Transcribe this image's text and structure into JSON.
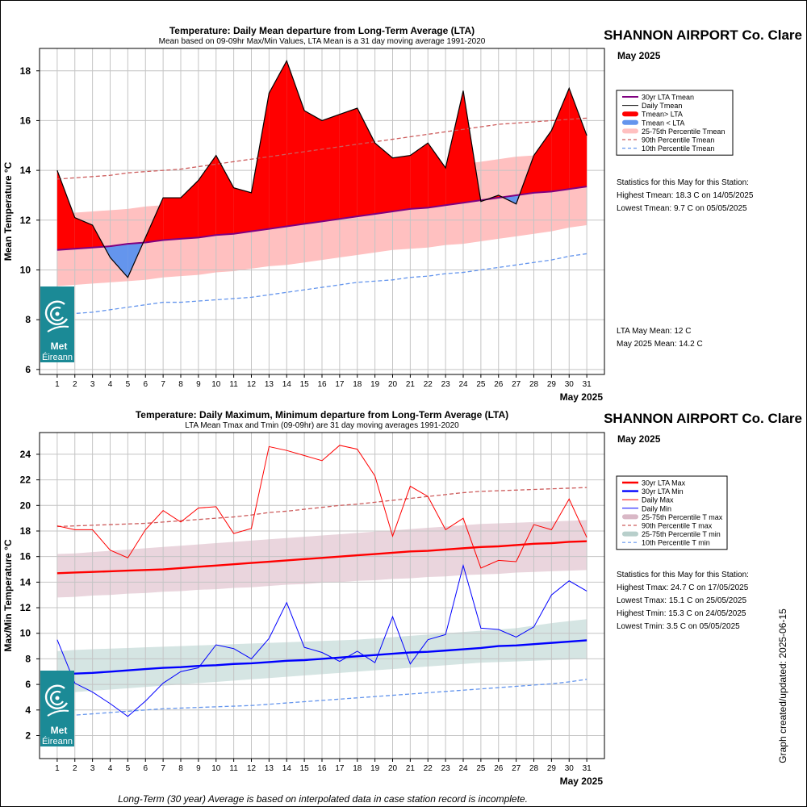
{
  "station": "SHANNON AIRPORT Co. Clare",
  "period": "May 2025",
  "footer_note": "Long-Term (30 year) Average is based on interpolated data in case station record is incomplete.",
  "created": "Graph created/updated:  2025-06-15",
  "logo": {
    "line1": "Met",
    "line2": "Éireann",
    "icon": "met-eireann-swirl-icon"
  },
  "colors": {
    "above_lta": "#ff0000",
    "below_lta": "#6495ed",
    "lta_mean": "#800080",
    "band_mean": "#ffc0c0",
    "max_line": "#ff0000",
    "min_line": "#0000ff",
    "band_max": "#ead5dd",
    "band_min": "#d5e5e3",
    "p10": "#6495ed",
    "p90": "#cd5c5c",
    "logo_bg": "#1b8a96"
  },
  "chart_data": [
    {
      "type": "area",
      "title": "Temperature: Daily Mean departure from Long-Term Average (LTA)",
      "subtitle": "Mean based on 09-09hr Max/Min Values, LTA Mean is a 31 day moving average 1991-2020",
      "xlabel": "May 2025",
      "ylabel": "Mean Temperature °C",
      "xlim": [
        0,
        32
      ],
      "ylim": [
        5.8,
        18.9
      ],
      "yticks": [
        6,
        8,
        10,
        12,
        14,
        16,
        18
      ],
      "grid": true,
      "legend_position": "right",
      "x": [
        1,
        2,
        3,
        4,
        5,
        6,
        7,
        8,
        9,
        10,
        11,
        12,
        13,
        14,
        15,
        16,
        17,
        18,
        19,
        20,
        21,
        22,
        23,
        24,
        25,
        26,
        27,
        28,
        29,
        30,
        31
      ],
      "legend": [
        "30yr LTA Tmean",
        "Daily Tmean",
        "Tmean> LTA",
        "Tmean < LTA",
        "25-75th Percentile Tmean",
        "90th Percentile Tmean",
        "10th Percentile Tmean"
      ],
      "series": [
        {
          "name": "Daily Tmean",
          "values": [
            14.0,
            12.1,
            11.8,
            10.5,
            9.7,
            11.3,
            12.9,
            12.9,
            13.6,
            14.6,
            13.3,
            13.1,
            17.1,
            18.4,
            16.4,
            16.0,
            16.25,
            16.5,
            15.1,
            14.5,
            14.6,
            15.1,
            14.1,
            17.2,
            12.75,
            13.0,
            12.65,
            14.6,
            15.6,
            17.3,
            15.4
          ]
        },
        {
          "name": "30yr LTA Tmean",
          "values": [
            10.8,
            10.85,
            10.9,
            10.95,
            11.05,
            11.1,
            11.2,
            11.25,
            11.3,
            11.4,
            11.45,
            11.55,
            11.65,
            11.75,
            11.85,
            11.95,
            12.05,
            12.15,
            12.25,
            12.35,
            12.45,
            12.5,
            12.6,
            12.7,
            12.8,
            12.9,
            13.0,
            13.1,
            13.15,
            13.25,
            13.35
          ]
        },
        {
          "name": "25th Percentile Tmean",
          "values": [
            9.35,
            9.4,
            9.45,
            9.5,
            9.55,
            9.6,
            9.7,
            9.75,
            9.8,
            9.9,
            9.95,
            10.05,
            10.15,
            10.2,
            10.3,
            10.4,
            10.5,
            10.6,
            10.7,
            10.8,
            10.85,
            10.9,
            11.0,
            11.05,
            11.15,
            11.25,
            11.35,
            11.45,
            11.55,
            11.7,
            11.8
          ]
        },
        {
          "name": "75th Percentile Tmean",
          "values": [
            12.25,
            12.3,
            12.35,
            12.4,
            12.45,
            12.55,
            12.6,
            12.65,
            12.75,
            12.85,
            12.95,
            13.05,
            13.15,
            13.25,
            13.35,
            13.45,
            13.55,
            13.65,
            13.75,
            13.85,
            13.95,
            14.05,
            14.15,
            14.25,
            14.35,
            14.45,
            14.55,
            14.6,
            14.7,
            14.75,
            14.8
          ]
        },
        {
          "name": "90th Percentile Tmean",
          "values": [
            13.65,
            13.7,
            13.75,
            13.8,
            13.9,
            13.95,
            14.0,
            14.05,
            14.15,
            14.25,
            14.35,
            14.45,
            14.55,
            14.65,
            14.75,
            14.85,
            14.95,
            15.05,
            15.15,
            15.25,
            15.35,
            15.45,
            15.55,
            15.65,
            15.75,
            15.85,
            15.9,
            15.95,
            16.0,
            16.05,
            16.1
          ]
        },
        {
          "name": "10th Percentile Tmean",
          "values": [
            8.2,
            8.25,
            8.3,
            8.4,
            8.5,
            8.6,
            8.7,
            8.7,
            8.75,
            8.8,
            8.85,
            8.9,
            9.0,
            9.1,
            9.2,
            9.3,
            9.4,
            9.5,
            9.55,
            9.6,
            9.7,
            9.75,
            9.85,
            9.9,
            10.0,
            10.1,
            10.2,
            10.3,
            10.4,
            10.55,
            10.65
          ]
        }
      ],
      "stats": {
        "heading": "Statistics for this May for this Station:",
        "lines": [
          "Highest Tmean: 18.3 C on 14/05/2025",
          "Lowest Tmean: 9.7 C on 05/05/2025"
        ],
        "lta_mean": "LTA May Mean: 12 C",
        "month_mean": "May 2025 Mean: 14.2 C"
      }
    },
    {
      "type": "line",
      "title": "Temperature: Daily Maximum, Minimum departure from Long-Term Average (LTA)",
      "subtitle": "LTA Mean Tmax and Tmin (09-09hr) are 31 day moving averages 1991-2020",
      "xlabel": "May 2025",
      "ylabel": "Max/Min Temperature °C",
      "xlim": [
        0,
        32
      ],
      "ylim": [
        0.2,
        25.7
      ],
      "yticks": [
        2,
        4,
        6,
        8,
        10,
        12,
        14,
        16,
        18,
        20,
        22,
        24
      ],
      "grid": true,
      "legend_position": "right",
      "x": [
        1,
        2,
        3,
        4,
        5,
        6,
        7,
        8,
        9,
        10,
        11,
        12,
        13,
        14,
        15,
        16,
        17,
        18,
        19,
        20,
        21,
        22,
        23,
        24,
        25,
        26,
        27,
        28,
        29,
        30,
        31
      ],
      "legend": [
        "30yr LTA Max",
        "30yr LTA Min",
        "Daily Max",
        "Daily Min",
        "25-75th Percentile T max",
        "90th Percentile T max",
        "25-75th Percentile T min",
        "10th Percentile T min"
      ],
      "series": [
        {
          "name": "Daily Max",
          "values": [
            18.4,
            18.1,
            18.1,
            16.5,
            15.9,
            18.1,
            19.6,
            18.7,
            19.8,
            19.9,
            17.8,
            18.2,
            24.6,
            24.3,
            23.9,
            23.5,
            24.7,
            24.4,
            22.3,
            17.6,
            21.5,
            20.7,
            18.1,
            19.0,
            15.1,
            15.7,
            15.6,
            18.5,
            18.1,
            20.5,
            17.5
          ]
        },
        {
          "name": "Daily Min",
          "values": [
            9.5,
            6.1,
            5.4,
            4.5,
            3.5,
            4.7,
            6.1,
            7.0,
            7.3,
            9.1,
            8.8,
            8.0,
            9.6,
            12.4,
            8.9,
            8.5,
            7.8,
            8.6,
            7.7,
            11.3,
            7.6,
            9.5,
            9.9,
            15.3,
            10.4,
            10.3,
            9.7,
            10.5,
            13.0,
            14.1,
            13.3
          ]
        },
        {
          "name": "30yr LTA Max",
          "values": [
            14.7,
            14.75,
            14.8,
            14.85,
            14.9,
            14.95,
            15.0,
            15.1,
            15.2,
            15.3,
            15.4,
            15.5,
            15.6,
            15.7,
            15.8,
            15.9,
            16.0,
            16.1,
            16.2,
            16.3,
            16.4,
            16.45,
            16.55,
            16.65,
            16.75,
            16.8,
            16.9,
            17.0,
            17.05,
            17.15,
            17.2
          ]
        },
        {
          "name": "30yr LTA Min",
          "values": [
            6.8,
            6.85,
            6.9,
            7.0,
            7.1,
            7.2,
            7.3,
            7.35,
            7.45,
            7.5,
            7.6,
            7.65,
            7.75,
            7.85,
            7.9,
            8.0,
            8.1,
            8.2,
            8.3,
            8.4,
            8.5,
            8.55,
            8.65,
            8.75,
            8.85,
            9.0,
            9.05,
            9.15,
            9.25,
            9.35,
            9.45
          ]
        },
        {
          "name": "25th Percentile T max",
          "values": [
            12.8,
            12.85,
            12.95,
            13.0,
            13.1,
            13.15,
            13.25,
            13.3,
            13.4,
            13.45,
            13.55,
            13.6,
            13.7,
            13.8,
            13.85,
            13.95,
            14.0,
            14.1,
            14.15,
            14.25,
            14.3,
            14.4,
            14.45,
            14.55,
            14.6,
            14.65,
            14.75,
            14.8,
            14.85,
            14.9,
            14.95
          ]
        },
        {
          "name": "75th Percentile T max",
          "values": [
            16.2,
            16.25,
            16.35,
            16.45,
            16.55,
            16.65,
            16.75,
            16.85,
            16.95,
            17.05,
            17.15,
            17.25,
            17.35,
            17.45,
            17.55,
            17.65,
            17.75,
            17.85,
            17.95,
            18.05,
            18.15,
            18.25,
            18.35,
            18.45,
            18.55,
            18.6,
            18.65,
            18.7,
            18.75,
            18.8,
            18.85
          ]
        },
        {
          "name": "90th Percentile T max",
          "values": [
            18.35,
            18.4,
            18.45,
            18.5,
            18.55,
            18.6,
            18.7,
            18.8,
            18.9,
            19.0,
            19.1,
            19.25,
            19.45,
            19.55,
            19.7,
            19.85,
            20.0,
            20.1,
            20.25,
            20.4,
            20.55,
            20.7,
            20.85,
            21.0,
            21.1,
            21.15,
            21.2,
            21.25,
            21.3,
            21.35,
            21.4
          ]
        },
        {
          "name": "25th Percentile T min",
          "values": [
            5.3,
            5.4,
            5.5,
            5.6,
            5.7,
            5.8,
            5.9,
            6.0,
            6.1,
            6.2,
            6.3,
            6.4,
            6.5,
            6.6,
            6.7,
            6.8,
            6.9,
            7.0,
            7.1,
            7.2,
            7.3,
            7.4,
            7.5,
            7.6,
            7.7,
            7.75,
            7.8,
            7.85,
            7.9,
            7.95,
            8.0
          ]
        },
        {
          "name": "75th Percentile T min",
          "values": [
            8.6,
            8.7,
            8.75,
            8.8,
            8.85,
            8.9,
            8.95,
            9.0,
            9.05,
            9.1,
            9.15,
            9.2,
            9.25,
            9.3,
            9.35,
            9.4,
            9.45,
            9.5,
            9.6,
            9.7,
            9.8,
            9.9,
            10.0,
            10.1,
            10.2,
            10.3,
            10.4,
            10.6,
            10.8,
            10.95,
            11.1
          ]
        },
        {
          "name": "10th Percentile T min",
          "values": [
            3.5,
            3.6,
            3.7,
            3.8,
            3.9,
            4.0,
            4.1,
            4.15,
            4.2,
            4.25,
            4.3,
            4.35,
            4.45,
            4.55,
            4.65,
            4.75,
            4.85,
            4.95,
            5.05,
            5.15,
            5.25,
            5.35,
            5.45,
            5.55,
            5.65,
            5.75,
            5.85,
            5.95,
            6.05,
            6.2,
            6.4
          ]
        }
      ],
      "stats": {
        "heading": "Statistics for this May for this Station:",
        "lines": [
          "Highest Tmax: 24.7 C on 17/05/2025",
          "Lowest Tmax: 15.1 C on 25/05/2025",
          "Highest Tmin: 15.3 C on 24/05/2025",
          "Lowest Tmin: 3.5 C on 05/05/2025"
        ]
      }
    }
  ]
}
